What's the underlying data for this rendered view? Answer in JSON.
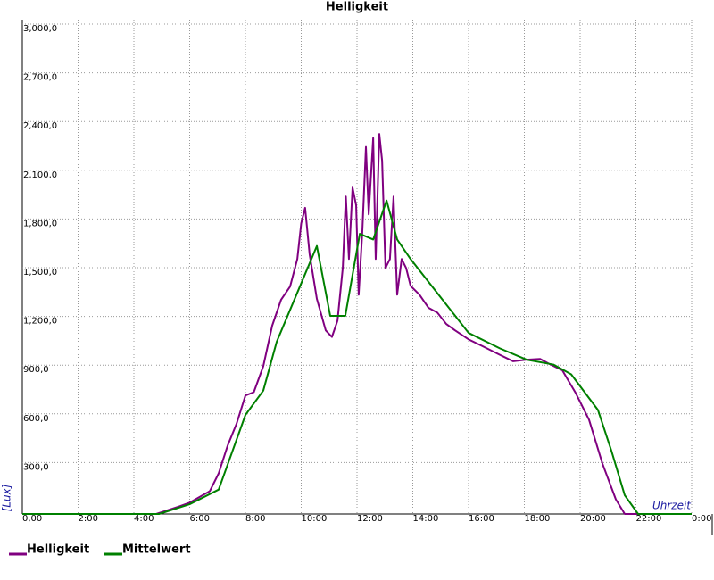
{
  "chart_data": {
    "type": "line",
    "title": "Helligkeit",
    "x_label": "Uhrzeit",
    "y_label": "[Lux]",
    "xlim": [
      0,
      24
    ],
    "ylim": [
      0,
      3000
    ],
    "xticks": [
      {
        "value": 0,
        "label": "0,00"
      },
      {
        "value": 2,
        "label": "2:00"
      },
      {
        "value": 4,
        "label": "4:00"
      },
      {
        "value": 6,
        "label": "6:00"
      },
      {
        "value": 8,
        "label": "8:00"
      },
      {
        "value": 10,
        "label": "10:00"
      },
      {
        "value": 12,
        "label": "12:00"
      },
      {
        "value": 14,
        "label": "14:00"
      },
      {
        "value": 16,
        "label": "16:00"
      },
      {
        "value": 18,
        "label": "18:00"
      },
      {
        "value": 20,
        "label": "20:00"
      },
      {
        "value": 22,
        "label": "22:00"
      },
      {
        "value": 24,
        "label": "0:00"
      }
    ],
    "yticks": [
      {
        "value": 300,
        "label": "300,0"
      },
      {
        "value": 600,
        "label": "600,0"
      },
      {
        "value": 900,
        "label": "900,0"
      },
      {
        "value": 1200,
        "label": "1,200,0"
      },
      {
        "value": 1500,
        "label": "1,500,0"
      },
      {
        "value": 1800,
        "label": "1,800,0"
      },
      {
        "value": 2100,
        "label": "2,100,0"
      },
      {
        "value": 2400,
        "label": "2,400,0"
      },
      {
        "value": 2700,
        "label": "2,700,0"
      },
      {
        "value": 3000,
        "label": "3,000,0"
      }
    ],
    "grid": true,
    "series": [
      {
        "name": "Helligkeit",
        "color": "#800080",
        "x": [
          0,
          4.8,
          5.6,
          6,
          6.72,
          7.04,
          7.36,
          7.68,
          8.0,
          8.3,
          8.64,
          8.96,
          9.28,
          9.6,
          9.86,
          10.0,
          10.14,
          10.3,
          10.56,
          10.88,
          11.1,
          11.3,
          11.49,
          11.6,
          11.71,
          11.84,
          11.97,
          12.06,
          12.19,
          12.32,
          12.42,
          12.58,
          12.67,
          12.8,
          12.9,
          13.02,
          13.18,
          13.31,
          13.44,
          13.6,
          13.76,
          13.92,
          14.24,
          14.56,
          14.88,
          15.2,
          15.52,
          16.0,
          16.48,
          17.12,
          17.6,
          18.08,
          18.56,
          18.88,
          19.36,
          19.84,
          20.32,
          20.8,
          21.28,
          21.6,
          24
        ],
        "values": [
          0,
          0,
          45,
          70,
          140,
          250,
          420,
          555,
          730,
          750,
          910,
          1160,
          1320,
          1400,
          1570,
          1790,
          1885,
          1600,
          1325,
          1130,
          1090,
          1190,
          1515,
          1955,
          1570,
          2010,
          1900,
          1350,
          1735,
          2260,
          1845,
          2315,
          1570,
          2340,
          2175,
          1515,
          1570,
          1955,
          1350,
          1570,
          1515,
          1405,
          1350,
          1270,
          1240,
          1170,
          1130,
          1075,
          1035,
          980,
          940,
          950,
          955,
          925,
          885,
          745,
          580,
          310,
          90,
          0,
          0
        ]
      },
      {
        "name": "Mittelwert",
        "color": "#008000",
        "x": [
          0,
          4.9,
          6.0,
          7.04,
          8.0,
          8.64,
          9.12,
          10.0,
          10.56,
          11.04,
          11.58,
          12.1,
          12.58,
          13.06,
          13.44,
          13.92,
          15.04,
          16.0,
          17.12,
          18.08,
          19.04,
          19.68,
          20.16,
          20.64,
          21.12,
          21.6,
          22.08,
          24
        ],
        "values": [
          0,
          0,
          60,
          150,
          610,
          760,
          1060,
          1420,
          1650,
          1220,
          1220,
          1725,
          1690,
          1930,
          1690,
          1570,
          1325,
          1115,
          1020,
          950,
          920,
          860,
          750,
          640,
          390,
          115,
          0,
          0
        ]
      }
    ]
  }
}
